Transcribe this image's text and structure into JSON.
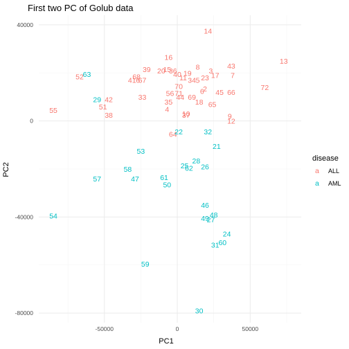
{
  "chart_data": {
    "type": "scatter",
    "title": "First two PC of Golub data",
    "xlabel": "PC1",
    "ylabel": "PC2",
    "xlim": [
      -95000,
      85000
    ],
    "ylim": [
      -84000,
      44000
    ],
    "x_ticks": [
      -50000,
      0,
      50000
    ],
    "x_tick_labels": [
      "-50000",
      "0",
      "50000"
    ],
    "y_ticks": [
      40000,
      0,
      -40000,
      -80000
    ],
    "y_tick_labels": [
      "40000",
      "0",
      "-40000",
      "-80000"
    ],
    "grid": true,
    "legend": {
      "title": "disease",
      "placement": "right",
      "key_glyph": "a",
      "entries": [
        {
          "name": "ALL",
          "color": "#F8766D"
        },
        {
          "name": "AML",
          "color": "#00BFC4"
        }
      ]
    },
    "series": [
      {
        "name": "ALL",
        "color": "#F8766D",
        "points": [
          {
            "label": "14",
            "x": 21000,
            "y": 37500
          },
          {
            "label": "16",
            "x": -6000,
            "y": 26500
          },
          {
            "label": "13",
            "x": 73000,
            "y": 25000
          },
          {
            "label": "43",
            "x": 37000,
            "y": 23000
          },
          {
            "label": "8",
            "x": 14000,
            "y": 22500
          },
          {
            "label": "39",
            "x": -21000,
            "y": 21500
          },
          {
            "label": "15",
            "x": -7000,
            "y": 21500
          },
          {
            "label": "20",
            "x": -11000,
            "y": 21000
          },
          {
            "label": "36",
            "x": -3000,
            "y": 21000
          },
          {
            "label": "3",
            "x": 23000,
            "y": 21000
          },
          {
            "label": "19",
            "x": 7000,
            "y": 20000
          },
          {
            "label": "40",
            "x": 0,
            "y": 19500
          },
          {
            "label": "17",
            "x": 26000,
            "y": 19000
          },
          {
            "label": "52",
            "x": -67000,
            "y": 18500
          },
          {
            "label": "7",
            "x": 38000,
            "y": 19000
          },
          {
            "label": "68",
            "x": -28000,
            "y": 18500
          },
          {
            "label": "11",
            "x": 4000,
            "y": 18000
          },
          {
            "label": "23",
            "x": 19000,
            "y": 18000
          },
          {
            "label": "34",
            "x": 10000,
            "y": 17000
          },
          {
            "label": "5",
            "x": 14000,
            "y": 17000
          },
          {
            "label": "41",
            "x": -31000,
            "y": 17000
          },
          {
            "label": "6",
            "x": -27000,
            "y": 17000
          },
          {
            "label": "67",
            "x": -24000,
            "y": 17000
          },
          {
            "label": "72",
            "x": 60000,
            "y": 14000
          },
          {
            "label": "70",
            "x": 1000,
            "y": 14500
          },
          {
            "label": "2",
            "x": 19000,
            "y": 13500
          },
          {
            "label": "45",
            "x": 29000,
            "y": 12000
          },
          {
            "label": "66",
            "x": 37000,
            "y": 12000
          },
          {
            "label": "6",
            "x": 17000,
            "y": 12500
          },
          {
            "label": "56",
            "x": -5000,
            "y": 11500
          },
          {
            "label": "71",
            "x": 1000,
            "y": 11500
          },
          {
            "label": "33",
            "x": -24000,
            "y": 10000
          },
          {
            "label": "44",
            "x": 2000,
            "y": 10000
          },
          {
            "label": "69",
            "x": 10000,
            "y": 10000
          },
          {
            "label": "42",
            "x": -47000,
            "y": 9000
          },
          {
            "label": "35",
            "x": -6000,
            "y": 8000
          },
          {
            "label": "18",
            "x": 15000,
            "y": 8000
          },
          {
            "label": "65",
            "x": 24000,
            "y": 7000
          },
          {
            "label": "51",
            "x": -51000,
            "y": 6000
          },
          {
            "label": "55",
            "x": -85000,
            "y": 4500
          },
          {
            "label": "4",
            "x": -7000,
            "y": 5000
          },
          {
            "label": "38",
            "x": -47000,
            "y": 2500
          },
          {
            "label": "10",
            "x": 6000,
            "y": 3000
          },
          {
            "label": "37",
            "x": 6000,
            "y": 2500
          },
          {
            "label": "9",
            "x": 36000,
            "y": 2000
          },
          {
            "label": "12",
            "x": 37000,
            "y": 0
          },
          {
            "label": "64",
            "x": -3000,
            "y": -5500
          }
        ]
      },
      {
        "name": "AML",
        "color": "#00BFC4",
        "points": [
          {
            "label": "63",
            "x": -62000,
            "y": 19500
          },
          {
            "label": "29",
            "x": -55000,
            "y": 9000
          },
          {
            "label": "22",
            "x": 1000,
            "y": -4500
          },
          {
            "label": "32",
            "x": 21000,
            "y": -4500
          },
          {
            "label": "21",
            "x": 27000,
            "y": -10500
          },
          {
            "label": "53",
            "x": -25000,
            "y": -12500
          },
          {
            "label": "28",
            "x": 13000,
            "y": -16500
          },
          {
            "label": "25",
            "x": 5000,
            "y": -18500
          },
          {
            "label": "62",
            "x": 8000,
            "y": -19500
          },
          {
            "label": "26",
            "x": 19000,
            "y": -19000
          },
          {
            "label": "58",
            "x": -34000,
            "y": -20000
          },
          {
            "label": "57",
            "x": -55000,
            "y": -24000
          },
          {
            "label": "47",
            "x": -29000,
            "y": -24000
          },
          {
            "label": "61",
            "x": -9000,
            "y": -23500
          },
          {
            "label": "50",
            "x": -7000,
            "y": -26500
          },
          {
            "label": "46",
            "x": 19000,
            "y": -35000
          },
          {
            "label": "48",
            "x": 25000,
            "y": -39000
          },
          {
            "label": "49",
            "x": 19000,
            "y": -40500
          },
          {
            "label": "27",
            "x": 23000,
            "y": -41000
          },
          {
            "label": "54",
            "x": -85000,
            "y": -39500
          },
          {
            "label": "24",
            "x": 34000,
            "y": -47000
          },
          {
            "label": "60",
            "x": 31000,
            "y": -50500
          },
          {
            "label": "31",
            "x": 26000,
            "y": -51500
          },
          {
            "label": "59",
            "x": -22000,
            "y": -59500
          },
          {
            "label": "30",
            "x": 15000,
            "y": -79000
          }
        ]
      }
    ]
  }
}
